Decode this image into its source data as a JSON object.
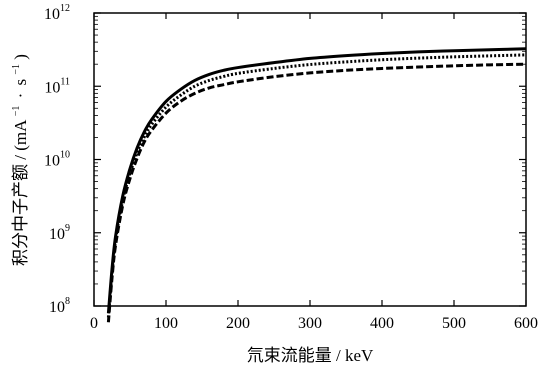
{
  "chart_data": {
    "type": "line",
    "xlabel": "氘束流能量 / keV",
    "ylabel": "积分中子产额 / (mA",
    "ylabel_unit_tail": "s",
    "ylabel_exponent": "−1",
    "ylabel_dot": "·",
    "ylabel_close": ")",
    "xlim": [
      0,
      600
    ],
    "ylim_log10": [
      8,
      12
    ],
    "y_scale": "log",
    "x_ticks": [
      "0",
      "100",
      "200",
      "300",
      "400",
      "500",
      "600"
    ],
    "y_ticks": [
      {
        "base": "10",
        "exp": "12"
      },
      {
        "base": "10",
        "exp": "11"
      },
      {
        "base": "10",
        "exp": "10"
      },
      {
        "base": "10",
        "exp": "9"
      },
      {
        "base": "10",
        "exp": "8"
      }
    ],
    "x": [
      20,
      25,
      30,
      40,
      50,
      60,
      70,
      80,
      100,
      120,
      140,
      160,
      180,
      200,
      250,
      300,
      350,
      400,
      450,
      500,
      550,
      600
    ],
    "series": [
      {
        "style": "solid",
        "color": "#000000",
        "values": [
          80000000.0,
          320000000.0,
          900000000.0,
          3200000000.0,
          7500000000.0,
          14500000000.0,
          24000000000.0,
          35000000000.0,
          62000000000.0,
          90000000000.0,
          120000000000.0,
          145000000000.0,
          165000000000.0,
          180000000000.0,
          210000000000.0,
          240000000000.0,
          262000000000.0,
          280000000000.0,
          295000000000.0,
          305000000000.0,
          315000000000.0,
          325000000000.0
        ]
      },
      {
        "style": "dotted",
        "color": "#000000",
        "values": [
          70000000.0,
          280000000.0,
          800000000.0,
          2800000000.0,
          6500000000.0,
          12500000000.0,
          20500000000.0,
          30000000000.0,
          52000000000.0,
          75000000000.0,
          100000000000.0,
          120000000000.0,
          136000000000.0,
          150000000000.0,
          175000000000.0,
          198000000000.0,
          215000000000.0,
          230000000000.0,
          242000000000.0,
          252000000000.0,
          260000000000.0,
          268000000000.0
        ]
      },
      {
        "style": "dashed",
        "color": "#000000",
        "values": [
          60000000.0,
          240000000.0,
          680000000.0,
          2400000000.0,
          5500000000.0,
          10500000000.0,
          17500000000.0,
          25000000000.0,
          43000000000.0,
          62000000000.0,
          80000000000.0,
          95000000000.0,
          105000000000.0,
          115000000000.0,
          135000000000.0,
          152000000000.0,
          165000000000.0,
          175000000000.0,
          183000000000.0,
          190000000000.0,
          196000000000.0,
          200000000000.0
        ]
      }
    ],
    "grid": false,
    "legend": "none"
  }
}
